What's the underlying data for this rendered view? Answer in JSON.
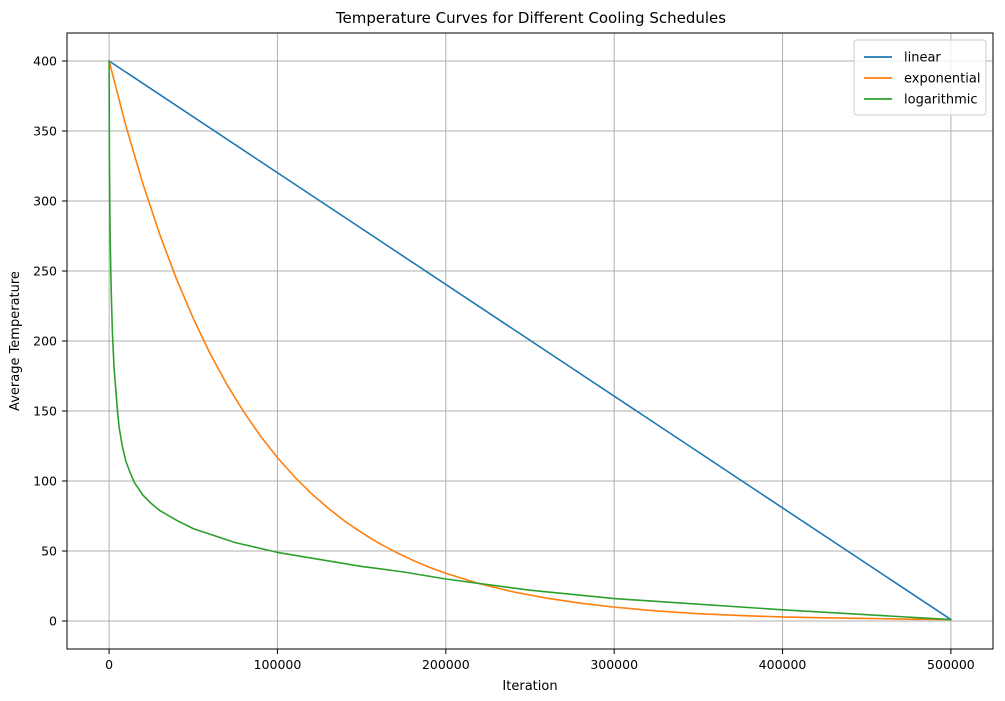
{
  "chart_data": {
    "type": "line",
    "title": "Temperature Curves for Different Cooling Schedules",
    "xlabel": "Iteration",
    "ylabel": "Average Temperature",
    "xlim": [
      -25000,
      525000
    ],
    "ylim": [
      -20,
      420
    ],
    "xticks": [
      0,
      100000,
      200000,
      300000,
      400000,
      500000
    ],
    "yticks": [
      0,
      50,
      100,
      150,
      200,
      250,
      300,
      350,
      400
    ],
    "grid": true,
    "legend_position": "top-right",
    "series": [
      {
        "name": "linear",
        "color": "#1f77b4",
        "x": [
          0,
          500000
        ],
        "y": [
          400,
          1
        ]
      },
      {
        "name": "exponential",
        "color": "#ff7f0e",
        "x": [
          0,
          10000,
          20000,
          30000,
          40000,
          50000,
          60000,
          70000,
          80000,
          90000,
          100000,
          110000,
          120000,
          130000,
          140000,
          150000,
          160000,
          170000,
          180000,
          190000,
          200000,
          220000,
          240000,
          260000,
          280000,
          300000,
          325000,
          350000,
          375000,
          400000,
          425000,
          450000,
          475000,
          500000
        ],
        "y": [
          400,
          353.6,
          312.6,
          276.4,
          244.4,
          216.1,
          191.0,
          168.9,
          149.3,
          132.0,
          116.7,
          103.2,
          91.2,
          80.7,
          71.3,
          63.1,
          55.8,
          49.3,
          43.6,
          38.5,
          34.1,
          26.6,
          20.8,
          16.3,
          12.7,
          9.9,
          7.2,
          5.2,
          3.9,
          2.9,
          2.3,
          1.8,
          1.3,
          1.0
        ]
      },
      {
        "name": "logarithmic",
        "color": "#2ca02c",
        "x": [
          0,
          100,
          200,
          400,
          700,
          1000,
          1500,
          2000,
          3000,
          4000,
          5000,
          6000,
          8000,
          10000,
          12500,
          15000,
          20000,
          25000,
          30000,
          40000,
          50000,
          60000,
          75000,
          100000,
          125000,
          150000,
          175000,
          200000,
          250000,
          300000,
          350000,
          400000,
          450000,
          500000
        ],
        "y": [
          400,
          360,
          330,
          300,
          270,
          250,
          225,
          205,
          180,
          165,
          150,
          138,
          124,
          114,
          106,
          99,
          90,
          84,
          79,
          72,
          66,
          62,
          56,
          49,
          44,
          39,
          35,
          30,
          22,
          16,
          12,
          8,
          4.5,
          1
        ]
      }
    ]
  }
}
